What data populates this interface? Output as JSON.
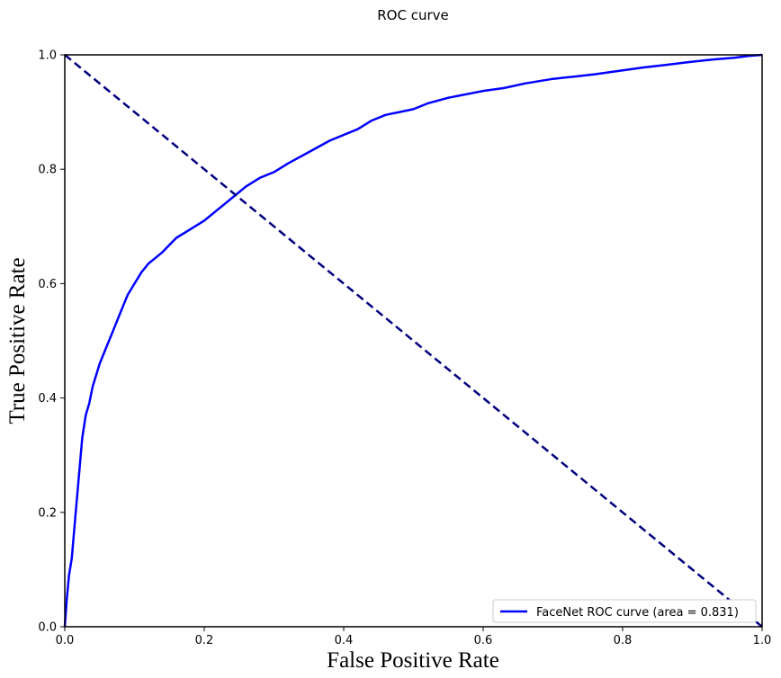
{
  "chart_data": {
    "type": "line",
    "title": "ROC curve",
    "xlabel": "False Positive Rate",
    "ylabel": "True Positive Rate",
    "xlim": [
      0.0,
      1.0
    ],
    "ylim": [
      0.0,
      1.0
    ],
    "x_ticks": [
      "0.0",
      "0.2",
      "0.4",
      "0.6",
      "0.8",
      "1.0"
    ],
    "y_ticks": [
      "0.0",
      "0.2",
      "0.4",
      "0.6",
      "0.8",
      "1.0"
    ],
    "grid": false,
    "legend_position": "lower-right",
    "series": [
      {
        "name": "FaceNet ROC curve (area = 0.831)",
        "color": "#0000ff",
        "style": "solid",
        "x": [
          0.0,
          0.003,
          0.006,
          0.01,
          0.015,
          0.02,
          0.025,
          0.03,
          0.035,
          0.04,
          0.05,
          0.06,
          0.07,
          0.08,
          0.09,
          0.1,
          0.11,
          0.12,
          0.13,
          0.14,
          0.16,
          0.18,
          0.2,
          0.22,
          0.24,
          0.26,
          0.28,
          0.3,
          0.32,
          0.35,
          0.38,
          0.4,
          0.42,
          0.44,
          0.46,
          0.48,
          0.5,
          0.52,
          0.55,
          0.58,
          0.6,
          0.63,
          0.66,
          0.7,
          0.73,
          0.76,
          0.8,
          0.83,
          0.86,
          0.9,
          0.93,
          0.96,
          0.98,
          1.0
        ],
        "y": [
          0.0,
          0.05,
          0.09,
          0.12,
          0.19,
          0.26,
          0.33,
          0.37,
          0.39,
          0.42,
          0.46,
          0.49,
          0.52,
          0.55,
          0.58,
          0.6,
          0.62,
          0.635,
          0.645,
          0.655,
          0.68,
          0.695,
          0.71,
          0.73,
          0.75,
          0.77,
          0.785,
          0.795,
          0.81,
          0.83,
          0.85,
          0.86,
          0.87,
          0.885,
          0.895,
          0.9,
          0.905,
          0.915,
          0.925,
          0.932,
          0.937,
          0.942,
          0.95,
          0.958,
          0.962,
          0.966,
          0.973,
          0.978,
          0.982,
          0.988,
          0.992,
          0.995,
          0.998,
          1.0
        ]
      },
      {
        "name": "",
        "color": "#000080",
        "style": "dashed",
        "x": [
          0.0,
          1.0
        ],
        "y": [
          1.0,
          0.0
        ]
      }
    ]
  }
}
